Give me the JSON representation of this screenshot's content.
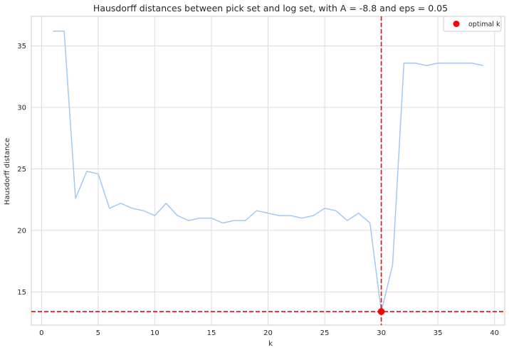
{
  "chart_data": {
    "type": "line",
    "title": "Hausdorff distances between pick set and log set, with A = -8.8 and eps = 0.05",
    "xlabel": "k",
    "ylabel": "Hausdorff distance",
    "xlim": [
      -0.9,
      40.9
    ],
    "ylim": [
      12.3,
      37.4
    ],
    "xticks": [
      0,
      5,
      10,
      15,
      20,
      25,
      30,
      35,
      40
    ],
    "yticks": [
      15,
      20,
      25,
      30,
      35
    ],
    "grid": true,
    "legend_position": "top-right",
    "series": [
      {
        "name": "",
        "color": "#a1c9f4",
        "x": [
          1,
          2,
          3,
          4,
          5,
          6,
          7,
          8,
          9,
          10,
          11,
          12,
          13,
          14,
          15,
          16,
          17,
          18,
          19,
          20,
          21,
          22,
          23,
          24,
          25,
          26,
          27,
          28,
          29,
          30,
          31,
          32,
          33,
          34,
          35,
          36,
          37,
          38,
          39
        ],
        "y": [
          36.2,
          36.2,
          22.6,
          24.8,
          24.6,
          21.8,
          22.2,
          21.8,
          21.6,
          21.2,
          22.2,
          21.2,
          20.8,
          21.0,
          21.0,
          20.6,
          20.8,
          20.8,
          21.6,
          21.4,
          21.2,
          21.2,
          21.0,
          21.2,
          21.8,
          21.6,
          20.8,
          21.4,
          20.6,
          13.4,
          17.2,
          33.6,
          33.6,
          33.4,
          33.6,
          33.6,
          33.6,
          33.6,
          33.4
        ]
      }
    ],
    "optimal_point": {
      "label": "optimal k",
      "x": 30,
      "y": 13.4,
      "color": "#ff0000"
    },
    "reference_lines": {
      "vertical_x": 30,
      "horizontal_y": 13.4,
      "color": "#ff0000",
      "style": "dashed"
    }
  }
}
